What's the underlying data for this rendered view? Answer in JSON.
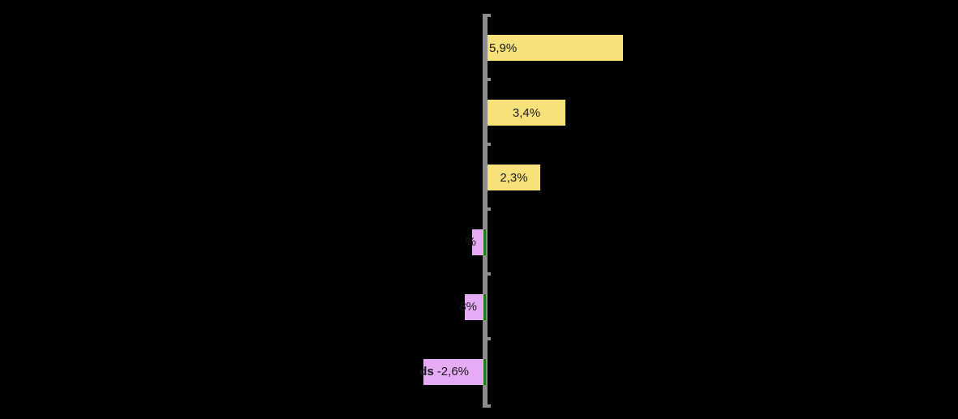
{
  "chart_data": {
    "type": "bar",
    "orientation": "horizontal",
    "title": "",
    "unit": "%",
    "background_color": "#000000",
    "axis_color": "#8C8C8C",
    "negative_edge_color": "#1F7A1F",
    "label_text_color": "#1A1A1A",
    "positive_color": "#F6E17B",
    "negative_color": "#E7AAF5",
    "legend": "none",
    "gridlines": "baseline ticks only",
    "bars": [
      {
        "value": 5.9,
        "visible_value_text": "5,9%",
        "visible_name_text": "",
        "color": "#F6E17B"
      },
      {
        "value": 3.4,
        "visible_value_text": "3,4%",
        "visible_name_text": "",
        "color": "#F6E17B"
      },
      {
        "value": 2.3,
        "visible_value_text": "2,3%",
        "visible_name_text": "",
        "color": "#F6E17B"
      },
      {
        "value": -0.5,
        "visible_value_text": "%",
        "visible_name_text": "",
        "color": "#E7AAF5"
      },
      {
        "value": -0.8,
        "visible_value_text": "8%",
        "visible_name_text": "",
        "color": "#E7AAF5"
      },
      {
        "value": -2.6,
        "visible_value_text": "-2,6%",
        "visible_name_text": "ds",
        "color": "#E7AAF5"
      }
    ]
  }
}
